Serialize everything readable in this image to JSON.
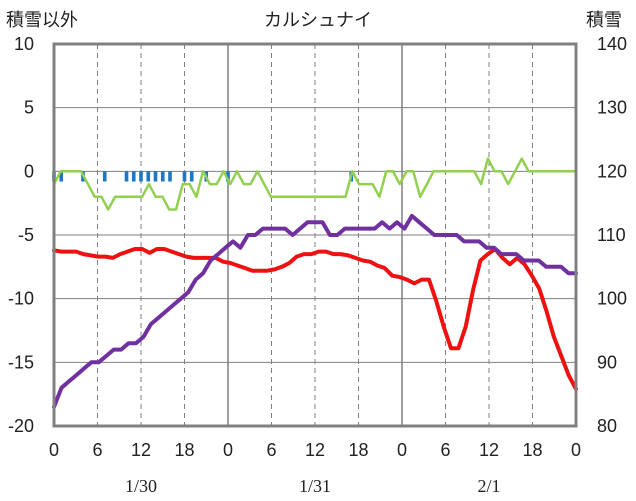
{
  "chart_data": {
    "type": "line",
    "title": "カルシュナイ",
    "ylabel_left": "積雪以外",
    "ylabel_right": "積雪",
    "ylim_left": [
      -20,
      10
    ],
    "ylim_right": [
      80,
      140
    ],
    "yticks_left": [
      "10",
      "5",
      "0",
      "-5",
      "-10",
      "-15",
      "-20"
    ],
    "yticks_right": [
      "140",
      "130",
      "120",
      "110",
      "100",
      "90",
      "80"
    ],
    "xticks": [
      "0",
      "6",
      "12",
      "18",
      "0",
      "6",
      "12",
      "18",
      "0",
      "6",
      "12",
      "18",
      "0"
    ],
    "date_labels": [
      "1/30",
      "1/31",
      "2/1"
    ],
    "grid": true,
    "colors": {
      "temperature": "#ee1111",
      "snow_depth": "#7030a0",
      "wind": "#92d050",
      "precipitation": "#1f77c4",
      "axes": "#808080"
    },
    "series": [
      {
        "axis": "left",
        "values": [
          -6.2,
          -6.3,
          -6.3,
          -6.3,
          -6.5,
          -6.6,
          -6.7,
          -6.7,
          -6.8,
          -6.5,
          -6.3,
          -6.1,
          -6.1,
          -6.4,
          -6.1,
          -6.1,
          -6.3,
          -6.5,
          -6.7,
          -6.8,
          -6.8,
          -6.8,
          -6.8,
          -7.1,
          -7.2,
          -7.4,
          -7.6,
          -7.8,
          -7.8,
          -7.8,
          -7.7,
          -7.5,
          -7.2,
          -6.7,
          -6.5,
          -6.5,
          -6.3,
          -6.3,
          -6.5,
          -6.5,
          -6.6,
          -6.8,
          -7.0,
          -7.1,
          -7.4,
          -7.6,
          -8.2,
          -8.3,
          -8.5,
          -8.8,
          -8.5,
          -8.5,
          -10.2,
          -12.2,
          -13.9,
          -13.9,
          -12.2,
          -9.3,
          -7.0,
          -6.5,
          -6.1,
          -6.8,
          -7.3,
          -6.8,
          -7.3,
          -8.2,
          -9.2,
          -11.0,
          -13.0,
          -14.5,
          -16.0,
          -17.1
        ],
        "note": "temperature"
      },
      {
        "axis": "right",
        "values": [
          83,
          86,
          87,
          88,
          89,
          90,
          90,
          91,
          92,
          92,
          93,
          93,
          94,
          96,
          97,
          98,
          99,
          100,
          101,
          103,
          104,
          106,
          107,
          108,
          109,
          108,
          110,
          110,
          111,
          111,
          111,
          111,
          110,
          111,
          112,
          112,
          112,
          110,
          110,
          111,
          111,
          111,
          111,
          111,
          112,
          111,
          112,
          111,
          113,
          112,
          111,
          110,
          110,
          110,
          110,
          109,
          109,
          109,
          108,
          108,
          107,
          107,
          107,
          106,
          106,
          106,
          105,
          105,
          105,
          104,
          104
        ],
        "note": "snow_depth"
      },
      {
        "axis": "left",
        "values": [
          -1,
          0,
          0,
          0,
          0,
          -1,
          -2,
          -2,
          -3,
          -2,
          -2,
          -2,
          -2,
          -2,
          -1,
          -2,
          -2,
          -3,
          -3,
          -1,
          -1,
          -2,
          0,
          -1,
          -1,
          0,
          -1,
          0,
          -1,
          -1,
          0,
          -1,
          -2,
          -2,
          -2,
          -2,
          -2,
          -2,
          -2,
          -2,
          -2,
          -2,
          -2,
          -2,
          0,
          -1,
          -1,
          -1,
          -2,
          0,
          0,
          -1,
          0,
          0,
          -2,
          -1,
          0,
          0,
          0,
          0,
          0,
          0,
          0,
          -1,
          1,
          0,
          0,
          -1,
          0,
          1,
          0,
          0,
          0,
          0,
          0,
          0,
          0,
          0
        ],
        "note": "wind"
      },
      {
        "axis": "left",
        "type": "bar",
        "values": [
          0.8,
          0.8,
          0,
          0,
          0.8,
          0,
          0,
          0.8,
          0,
          0,
          0.8,
          0.8,
          0.8,
          0.8,
          0.8,
          0.8,
          0.8,
          0,
          0.8,
          0.8,
          0,
          0.8,
          0,
          0,
          0.8,
          0,
          0,
          0,
          0,
          0,
          0,
          0,
          0,
          0,
          0,
          0,
          0,
          0,
          0,
          0,
          0,
          0.8
        ],
        "start_hour": 0,
        "note": "precipitation"
      }
    ]
  }
}
